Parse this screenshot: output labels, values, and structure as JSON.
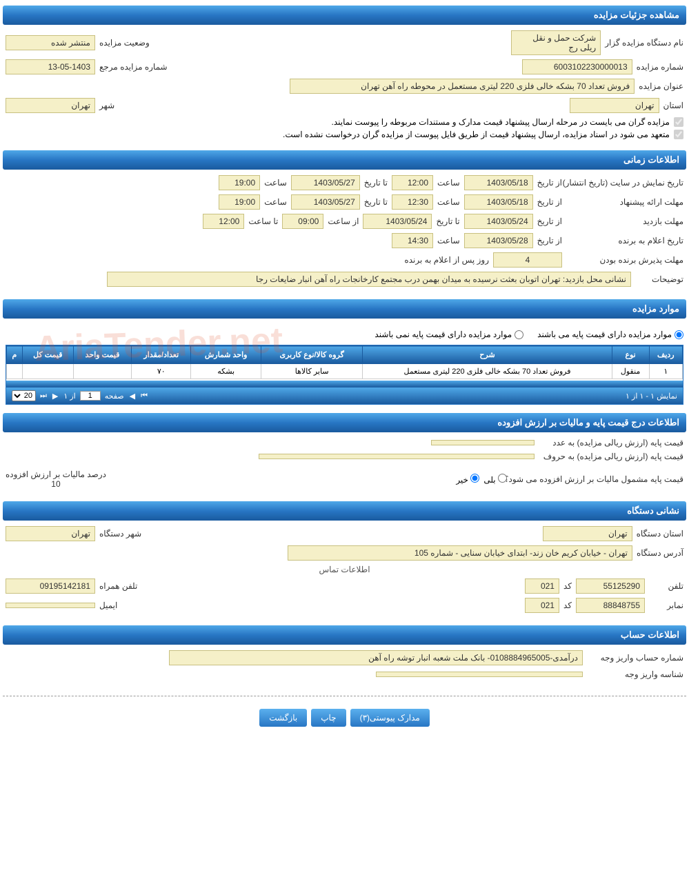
{
  "colors": {
    "header_gradient_top": "#4fa8e8",
    "header_gradient_bottom": "#1a5a9e",
    "field_bg": "#f5f0c8",
    "field_border": "#c8c080",
    "text": "#333333",
    "watermark": "rgba(220,80,40,0.18)"
  },
  "watermark_text": "AriaTender.net",
  "sections": {
    "details": {
      "title": "مشاهده جزئیات مزایده",
      "org_label": "نام دستگاه مزایده گزار",
      "org_value": "شرکت حمل و نقل ریلی رج",
      "status_label": "وضعیت مزایده",
      "status_value": "منتشر شده",
      "number_label": "شماره مزایده",
      "number_value": "6003102230000013",
      "ref_label": "شماره مزایده مرجع",
      "ref_value": "13-05-1403",
      "subject_label": "عنوان مزایده",
      "subject_value": "فروش تعداد 70 بشکه خالی فلزی 220 لیتری مستعمل در محوطه راه آهن تهران",
      "province_label": "استان",
      "province_value": "تهران",
      "city_label": "شهر",
      "city_value": "تهران",
      "check1": "مزایده گران می بایست در مرحله ارسال پیشنهاد قیمت مدارک و مستندات مربوطه را پیوست نمایند.",
      "check2": "متعهد می شود در اسناد مزایده، ارسال پیشنهاد قیمت از طریق فایل پیوست از مزایده گران درخواست نشده است."
    },
    "time": {
      "title": "اطلاعات زمانی",
      "display_label": "تاریخ نمایش در سایت (تاریخ انتشار)",
      "from_label": "از تاریخ",
      "to_label": "تا تاریخ",
      "hour_label": "ساعت",
      "from_hour_label": "از ساعت",
      "to_hour_label": "تا ساعت",
      "display_from": "1403/05/18",
      "display_from_hour": "12:00",
      "display_to": "1403/05/27",
      "display_to_hour": "19:00",
      "offer_label": "مهلت ارائه پیشنهاد",
      "offer_from": "1403/05/18",
      "offer_from_hour": "12:30",
      "offer_to": "1403/05/27",
      "offer_to_hour": "19:00",
      "visit_label": "مهلت بازدید",
      "visit_from": "1403/05/24",
      "visit_to": "1403/05/24",
      "visit_from_hour": "09:00",
      "visit_to_hour": "12:00",
      "winner_label": "تاریخ اعلام به برنده",
      "winner_from": "1403/05/28",
      "winner_hour": "14:30",
      "accept_label": "مهلت پذیرش برنده بودن",
      "accept_value": "4",
      "accept_suffix": "روز پس از اعلام به برنده",
      "desc_label": "توضیحات",
      "desc_value": "نشانی محل بازدید: تهران اتوبان بعثت نرسیده به میدان بهمن درب مجتمع کارخانجات راه آهن انبار ضایعات رجا"
    },
    "items": {
      "title": "موارد مزایده",
      "radio_has": "موارد مزایده دارای قیمت پایه می باشند",
      "radio_no": "موارد مزایده دارای قیمت پایه نمی باشند",
      "table": {
        "columns": [
          "ردیف",
          "نوع",
          "شرح",
          "گروه کالا/نوع کاربری",
          "واحد شمارش",
          "تعداد/مقدار",
          "قیمت واحد",
          "قیمت کل",
          "م"
        ],
        "rows": [
          [
            "۱",
            "منقول",
            "فروش تعداد 70 بشکه خالی فلزی 220 لیتری مستعمل",
            "سایر کالاها",
            "بشکه",
            "۷۰",
            "",
            "",
            ""
          ]
        ]
      },
      "pager": {
        "info": "نمایش ۱ - ۱ از ۱",
        "page_label": "صفحه",
        "page_value": "1",
        "of_label": "از ۱",
        "per_page": "20"
      }
    },
    "price": {
      "title": "اطلاعات درج قیمت پایه و مالیات بر ارزش افزوده",
      "base_num_label": "قیمت پایه (ارزش ریالی مزایده) به عدد",
      "base_num_value": "",
      "base_txt_label": "قیمت پایه (ارزش ریالی مزایده) به حروف",
      "base_txt_value": "",
      "vat_q_label": "قیمت پایه مشمول مالیات بر ارزش افزوده می شود؟",
      "yes_label": "بلی",
      "no_label": "خیر",
      "vat_pct_label": "درصد مالیات بر ارزش افزوده",
      "vat_pct_value": "10"
    },
    "org_address": {
      "title": "نشانی دستگاه",
      "province_label": "استان دستگاه",
      "province_value": "تهران",
      "city_label": "شهر دستگاه",
      "city_value": "تهران",
      "address_label": "آدرس دستگاه",
      "address_value": "تهران - خیابان کریم خان زند- ابتدای خیابان سنایی - شماره 105",
      "contact_title": "اطلاعات تماس",
      "phone_label": "تلفن",
      "phone_value": "55125290",
      "code_label": "کد",
      "phone_code": "021",
      "mobile_label": "تلفن همراه",
      "mobile_value": "09195142181",
      "fax_label": "نمابر",
      "fax_value": "88848755",
      "fax_code": "021",
      "email_label": "ایمیل",
      "email_value": ""
    },
    "account": {
      "title": "اطلاعات حساب",
      "acc_label": "شماره حساب واریز وجه",
      "acc_value": "درآمدی-0108884965005- بانک ملت شعبه انبار توشه راه آهن",
      "id_label": "شناسه واریز وجه",
      "id_value": ""
    }
  },
  "buttons": {
    "attachments": "مدارک پیوستی(۳)",
    "print": "چاپ",
    "back": "بازگشت"
  }
}
